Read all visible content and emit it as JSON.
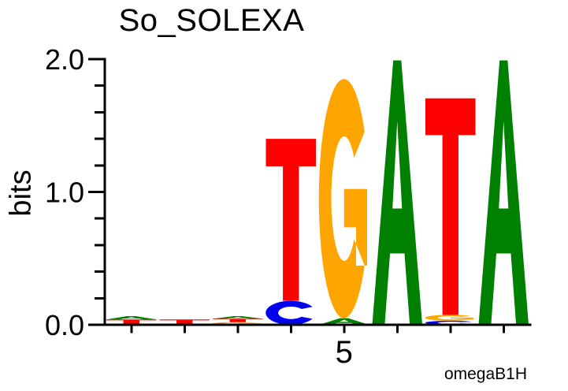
{
  "title": "So_SOLEXA",
  "ylabel": "bits",
  "credit": "omegaB1H",
  "chart_data": {
    "type": "sequence_logo",
    "title": "So_SOLEXA",
    "ylabel": "bits",
    "ylim": [
      0.0,
      2.0
    ],
    "ytick_major": [
      0.0,
      1.0,
      2.0
    ],
    "ytick_labels": [
      "0.0",
      "1.0",
      "2.0"
    ],
    "ytick_minor_step": 0.2,
    "num_positions": 8,
    "xtick_labeled": {
      "position": 5,
      "label": "5"
    },
    "credit": "omegaB1H",
    "colors": {
      "A": "#008000",
      "C": "#0000EE",
      "G": "#FFA500",
      "T": "#FF0000"
    },
    "stacks": [
      {
        "position": 1,
        "letters": [
          {
            "base": "T",
            "bits": 0.04
          },
          {
            "base": "A",
            "bits": 0.025
          }
        ]
      },
      {
        "position": 2,
        "letters": [
          {
            "base": "T",
            "bits": 0.04
          }
        ]
      },
      {
        "position": 3,
        "letters": [
          {
            "base": "G",
            "bits": 0.02
          },
          {
            "base": "T",
            "bits": 0.025
          },
          {
            "base": "A",
            "bits": 0.02
          }
        ]
      },
      {
        "position": 4,
        "letters": [
          {
            "base": "C",
            "bits": 0.18
          },
          {
            "base": "T",
            "bits": 1.22
          }
        ]
      },
      {
        "position": 5,
        "letters": [
          {
            "base": "A",
            "bits": 0.05
          },
          {
            "base": "G",
            "bits": 1.8
          }
        ]
      },
      {
        "position": 6,
        "letters": [
          {
            "base": "A",
            "bits": 1.99
          }
        ]
      },
      {
        "position": 7,
        "letters": [
          {
            "base": "C",
            "bits": 0.03
          },
          {
            "base": "G",
            "bits": 0.045
          },
          {
            "base": "T",
            "bits": 1.63
          }
        ]
      },
      {
        "position": 8,
        "letters": [
          {
            "base": "A",
            "bits": 1.99
          }
        ]
      }
    ]
  }
}
